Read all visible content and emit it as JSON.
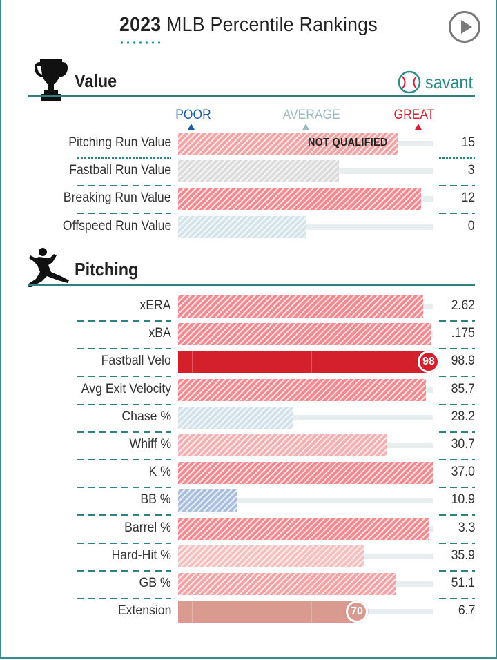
{
  "header": {
    "title_year": "2023",
    "title_rest": "MLB Percentile Rankings",
    "play_icon": "play-circle-icon"
  },
  "value_section": {
    "title": "Value",
    "icon": "trophy-icon",
    "brand": "savant",
    "brand_icon": "baseball-icon",
    "scale": {
      "poor": "POOR",
      "average": "AVERAGE",
      "great": "GREAT"
    }
  },
  "pitching_section": {
    "title": "Pitching",
    "icon": "pitcher-silhouette-icon"
  },
  "colors": {
    "accent": "#2f8080",
    "poor": "#1d5aa8",
    "average": "#9cbcc4",
    "great": "#d41f2c"
  },
  "chart_data": [
    {
      "type": "bar",
      "metrics": [
        {
          "label": "Pitching Run Value",
          "value": "15",
          "percentile": 86,
          "color": "#f0a4a6",
          "note": "NOT QUALIFIED",
          "style": "hatched"
        },
        {
          "label": "Fastball Run Value",
          "value": "3",
          "percentile": 63,
          "color": "#dcdcdc",
          "style": "hatched"
        },
        {
          "label": "Breaking Run Value",
          "value": "12",
          "percentile": 95,
          "color": "#f28b91",
          "style": "hatched"
        },
        {
          "label": "Offspeed Run Value",
          "value": "0",
          "percentile": 50,
          "color": "#d4e4e8",
          "style": "hatched"
        }
      ],
      "xlim": [
        0,
        100
      ]
    },
    {
      "type": "bar",
      "metrics": [
        {
          "label": "xERA",
          "value": "2.62",
          "percentile": 96,
          "color": "#f28b91",
          "style": "hatched"
        },
        {
          "label": "xBA",
          "value": ".175",
          "percentile": 99,
          "color": "#f28b91",
          "style": "hatched"
        },
        {
          "label": "Fastball Velo",
          "value": "98.9",
          "percentile": 98,
          "color": "#d41f2c",
          "style": "solid",
          "badge": "98"
        },
        {
          "label": "Avg Exit Velocity",
          "value": "85.7",
          "percentile": 97,
          "color": "#f28b91",
          "style": "hatched"
        },
        {
          "label": "Chase %",
          "value": "28.2",
          "percentile": 45,
          "color": "#d3e2ea",
          "style": "hatched"
        },
        {
          "label": "Whiff %",
          "value": "30.7",
          "percentile": 82,
          "color": "#f2b1b2",
          "style": "hatched"
        },
        {
          "label": "K %",
          "value": "37.0",
          "percentile": 100,
          "color": "#f28b91",
          "style": "hatched"
        },
        {
          "label": "BB %",
          "value": "10.9",
          "percentile": 23,
          "color": "#a9bedd",
          "style": "hatched"
        },
        {
          "label": "Barrel %",
          "value": "3.3",
          "percentile": 98,
          "color": "#f28b91",
          "style": "hatched"
        },
        {
          "label": "Hard-Hit %",
          "value": "35.9",
          "percentile": 73,
          "color": "#f4c0c0",
          "style": "hatched"
        },
        {
          "label": "GB %",
          "value": "51.1",
          "percentile": 85,
          "color": "#f2a3a6",
          "style": "hatched"
        },
        {
          "label": "Extension",
          "value": "6.7",
          "percentile": 70,
          "color": "#d99a90",
          "style": "solid",
          "badge": "70"
        }
      ],
      "xlim": [
        0,
        100
      ]
    }
  ]
}
